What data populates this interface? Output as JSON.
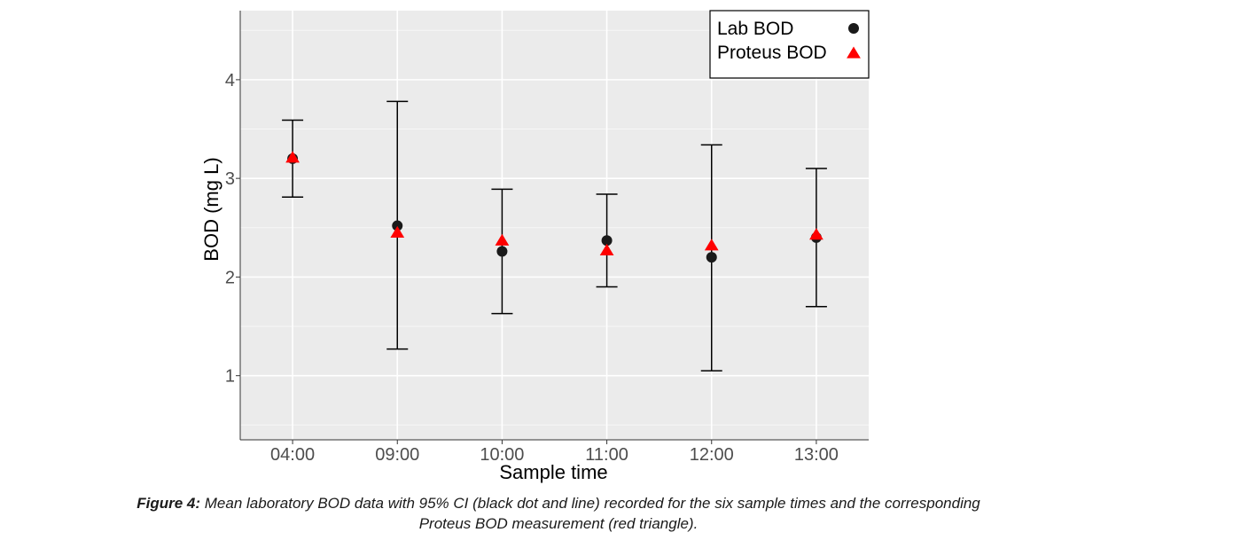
{
  "chart_data": {
    "type": "scatter",
    "categories": [
      "04:00",
      "09:00",
      "10:00",
      "11:00",
      "12:00",
      "13:00"
    ],
    "series": [
      {
        "name": "Lab BOD",
        "marker": "circle",
        "color": "#1a1a1a",
        "values": [
          3.2,
          2.52,
          2.26,
          2.37,
          2.2,
          2.4
        ],
        "ci_lower": [
          2.81,
          1.27,
          1.63,
          1.9,
          1.05,
          1.7
        ],
        "ci_upper": [
          3.59,
          3.78,
          2.89,
          2.84,
          3.34,
          3.1
        ]
      },
      {
        "name": "Proteus BOD",
        "marker": "triangle",
        "color": "#ff0000",
        "values": [
          3.21,
          2.45,
          2.37,
          2.27,
          2.32,
          2.43
        ]
      }
    ],
    "xlabel": "Sample time",
    "ylabel": "BOD (mg L)",
    "ylim": [
      0.35,
      4.7
    ],
    "yticks": [
      1,
      2,
      3,
      4
    ],
    "ytick_labels": [
      "1",
      "2",
      "3",
      "4"
    ],
    "grid": true,
    "legend_position": "top-right",
    "panel_background": "#ebebeb"
  },
  "caption": {
    "lead": "Figure 4:",
    "text": " Mean laboratory BOD data with 95% CI (black dot and line) recorded for the six sample times and the corresponding Proteus BOD measurement (red triangle)."
  }
}
